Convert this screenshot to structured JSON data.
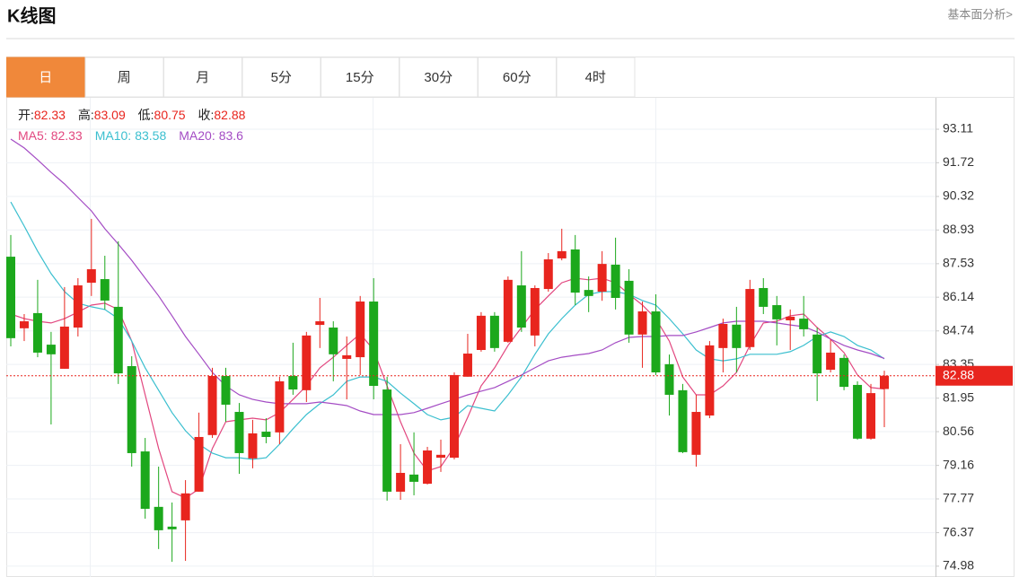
{
  "header": {
    "title": "K线图",
    "link": "基本面分析>"
  },
  "tabs": [
    "日",
    "周",
    "月",
    "5分",
    "15分",
    "30分",
    "60分",
    "4时"
  ],
  "chart_data": {
    "type": "candlestick",
    "info_labels": {
      "open": "开:",
      "high": "高:",
      "low": "低:",
      "close": "收:"
    },
    "up_color": "#e8251e",
    "down_color": "#1ca81c",
    "open": [
      87.82,
      84.85,
      85.48,
      84.17,
      83.17,
      84.88,
      86.74,
      86.89,
      85.74,
      83.28,
      79.74,
      77.44,
      76.62,
      76.88,
      78.07,
      80.42,
      82.87,
      81.38,
      79.45,
      80.56,
      80.53,
      82.87,
      82.28,
      84.99,
      84.88,
      83.58,
      83.65,
      85.96,
      82.31,
      78.07,
      78.78,
      78.4,
      79.48,
      79.48,
      82.84,
      83.95,
      85.37,
      84.29,
      86.63,
      84.55,
      86.48,
      87.75,
      88.12,
      86.44,
      86.37,
      87.49,
      86.82,
      84.59,
      85.55,
      83.36,
      82.28,
      79.6,
      81.23,
      84.03,
      85.0,
      84.07,
      86.52,
      85.81,
      85.18,
      85.25,
      84.59,
      83.13,
      83.62,
      82.5,
      80.27,
      82.33
    ],
    "high": [
      88.72,
      85.44,
      86.86,
      84.7,
      86.56,
      86.93,
      89.39,
      87.86,
      88.46,
      83.69,
      80.3,
      79.11,
      77.62,
      78.55,
      81.35,
      83.21,
      83.21,
      81.75,
      81.05,
      81.12,
      82.84,
      84.25,
      84.7,
      86.11,
      85.14,
      84.51,
      86.19,
      86.93,
      82.84,
      80.04,
      80.53,
      79.93,
      80.23,
      83.02,
      84.62,
      85.52,
      85.52,
      87.0,
      88.05,
      86.63,
      87.97,
      88.98,
      88.72,
      87.0,
      88.05,
      88.61,
      87.3,
      85.96,
      86.26,
      83.76,
      82.54,
      82.09,
      84.32,
      85.25,
      85.74,
      86.86,
      86.93,
      86.19,
      85.63,
      86.19,
      84.88,
      84.4,
      83.76,
      82.65,
      82.54,
      83.09
    ],
    "low": [
      84.1,
      84.32,
      83.65,
      80.86,
      83.17,
      84.51,
      86.19,
      85.63,
      82.54,
      79.11,
      76.95,
      75.69,
      75.16,
      75.2,
      78.07,
      80.3,
      80.97,
      78.81,
      79.04,
      80.08,
      80.04,
      82.09,
      81.79,
      84.03,
      82.65,
      81.9,
      82.91,
      81.9,
      77.7,
      77.73,
      77.92,
      78.37,
      78.89,
      79.41,
      82.84,
      83.88,
      83.88,
      84.25,
      84.7,
      84.1,
      86.37,
      87.67,
      85.81,
      85.52,
      85.99,
      85.63,
      84.25,
      83.21,
      82.91,
      81.23,
      79.67,
      79.11,
      81.12,
      83.02,
      83.02,
      83.95,
      85.44,
      84.14,
      83.95,
      84.51,
      81.83,
      83.02,
      82.28,
      80.23,
      80.23,
      80.75
    ],
    "close": [
      84.44,
      85.14,
      83.84,
      83.77,
      84.92,
      86.63,
      87.3,
      86.0,
      82.98,
      79.67,
      77.36,
      76.47,
      76.51,
      78.0,
      80.34,
      82.87,
      81.68,
      79.67,
      80.49,
      80.34,
      82.65,
      82.31,
      84.55,
      85.14,
      83.77,
      83.73,
      85.96,
      82.46,
      78.07,
      78.85,
      78.48,
      79.78,
      79.6,
      82.91,
      83.8,
      85.37,
      84.03,
      86.86,
      84.88,
      86.52,
      87.71,
      88.05,
      86.33,
      86.19,
      87.52,
      86.11,
      84.59,
      85.55,
      83.02,
      82.09,
      79.71,
      81.38,
      84.14,
      85.03,
      84.03,
      86.48,
      85.74,
      85.22,
      85.33,
      84.81,
      82.98,
      83.84,
      82.42,
      80.27,
      82.16,
      82.88
    ],
    "series": [
      {
        "name": "MA5:",
        "color": "#e2477f",
        "values": [
          85.44,
          85.25,
          85.14,
          85.07,
          85.25,
          85.52,
          85.81,
          85.89,
          85.63,
          84.32,
          82.09,
          79.86,
          78.07,
          77.81,
          78.18,
          79.86,
          80.97,
          81.05,
          81.12,
          81.05,
          81.35,
          81.9,
          82.46,
          83.21,
          83.65,
          84.14,
          84.62,
          83.95,
          82.46,
          80.97,
          79.67,
          78.93,
          79.11,
          79.93,
          81.16,
          82.46,
          83.21,
          84.14,
          84.88,
          85.63,
          86.19,
          86.74,
          86.93,
          86.86,
          86.93,
          86.74,
          86.26,
          85.81,
          85.25,
          84.32,
          82.83,
          82.09,
          82.09,
          82.46,
          83.02,
          84.14,
          85.07,
          85.14,
          85.37,
          85.44,
          84.88,
          84.4,
          83.84,
          82.91,
          82.39,
          82.33
        ]
      },
      {
        "name": "MA10:",
        "color": "#3bbfcf",
        "values": [
          90.09,
          89.09,
          88.05,
          87.12,
          86.37,
          85.89,
          85.74,
          85.63,
          85.25,
          84.32,
          83.21,
          82.28,
          81.35,
          80.6,
          80.04,
          79.67,
          79.48,
          79.48,
          79.41,
          79.48,
          80.04,
          80.68,
          81.27,
          81.72,
          82.09,
          82.65,
          82.83,
          82.83,
          82.65,
          82.16,
          81.72,
          81.27,
          81.05,
          81.16,
          81.64,
          81.53,
          81.42,
          82.09,
          82.83,
          83.77,
          84.62,
          85.25,
          85.81,
          86.26,
          86.37,
          86.37,
          86.26,
          86.0,
          85.81,
          85.25,
          84.62,
          83.95,
          83.58,
          83.5,
          83.58,
          83.77,
          83.77,
          83.77,
          83.88,
          84.14,
          84.51,
          84.7,
          84.51,
          84.14,
          83.95,
          83.58
        ]
      },
      {
        "name": "MA20:",
        "color": "#a44cc4",
        "values": [
          92.7,
          92.33,
          91.84,
          91.32,
          90.84,
          90.28,
          89.72,
          88.98,
          88.34,
          87.67,
          86.93,
          86.19,
          85.37,
          84.51,
          83.77,
          83.02,
          82.46,
          82.09,
          81.9,
          81.79,
          81.72,
          81.72,
          81.72,
          81.79,
          81.72,
          81.64,
          81.42,
          81.27,
          81.27,
          81.27,
          81.35,
          81.53,
          81.72,
          81.9,
          82.09,
          82.24,
          82.39,
          82.65,
          82.91,
          83.21,
          83.5,
          83.65,
          83.73,
          83.8,
          83.95,
          84.25,
          84.47,
          84.51,
          84.51,
          84.55,
          84.55,
          84.7,
          84.88,
          85.07,
          85.14,
          85.14,
          85.14,
          85.07,
          84.99,
          84.92,
          84.7,
          84.4,
          84.14,
          83.95,
          83.8,
          83.6
        ]
      }
    ],
    "ylim": [
      74.53,
      94.45
    ],
    "yticks": [
      93.11,
      91.72,
      90.32,
      88.93,
      87.53,
      86.14,
      84.74,
      83.35,
      81.95,
      80.56,
      79.16,
      77.77,
      76.37,
      74.98
    ],
    "grid": true
  }
}
